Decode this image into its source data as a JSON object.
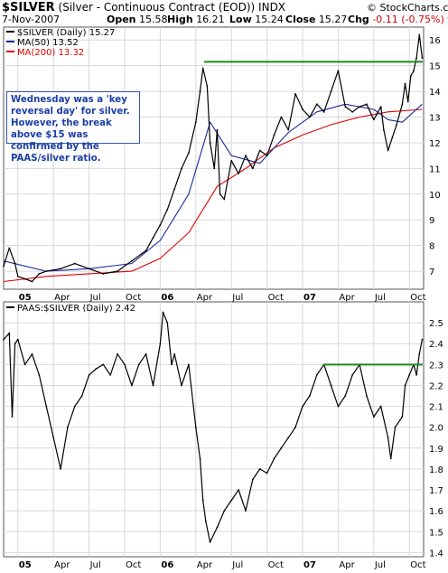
{
  "header": {
    "symbol": "$SILVER",
    "name": "(Silver - Continuous Contract (EOD))",
    "exchange": "INDX",
    "source": "© StockCharts.com",
    "date": "7-Nov-2007",
    "open_label": "Open",
    "open": "15.58",
    "high_label": "High",
    "high": "16.21",
    "low_label": "Low",
    "low": "15.24",
    "close_label": "Close",
    "close": "15.27",
    "chg_label": "Chg",
    "chg": "-0.11 (-0.75%)"
  },
  "colors": {
    "price": "#000000",
    "ma50": "#1c2c9c",
    "ma200": "#e00000",
    "resistance": "#1a8a1a",
    "grid": "#d8d8d8"
  },
  "annotation": "Wednesday was a 'key reversal day' for silver. However, the break above $15 was confirmed by the PAAS/silver ratio.",
  "chart_data": [
    {
      "type": "line",
      "panel": "top",
      "legend": [
        "$SILVER (Daily) 15.27",
        "MA(50) 13.52",
        "MA(200) 13.32"
      ],
      "ylim": [
        6.3,
        16.5
      ],
      "y_ticks": [
        7,
        8,
        9,
        10,
        11,
        12,
        13,
        14,
        15,
        16
      ],
      "x_tick_labels": [
        "05",
        "Apr",
        "Jul",
        "Oct",
        "06",
        "Apr",
        "Jul",
        "Oct",
        "07",
        "Apr",
        "Jul",
        "Oct"
      ],
      "x_ticks_t": [
        0.0,
        0.25,
        0.5,
        0.75,
        1.0,
        1.25,
        1.5,
        1.75,
        2.0,
        2.25,
        2.5,
        2.75
      ],
      "xlim_t": [
        -0.1,
        2.85
      ],
      "resistance_level": 15.15,
      "series": [
        {
          "name": "$SILVER (Daily)",
          "x_t": [
            -0.1,
            -0.06,
            -0.02,
            0.0,
            0.05,
            0.1,
            0.15,
            0.2,
            0.3,
            0.4,
            0.5,
            0.6,
            0.7,
            0.8,
            0.9,
            0.95,
            1.0,
            1.05,
            1.1,
            1.15,
            1.2,
            1.25,
            1.28,
            1.3,
            1.33,
            1.35,
            1.38,
            1.4,
            1.42,
            1.45,
            1.5,
            1.55,
            1.6,
            1.65,
            1.7,
            1.75,
            1.8,
            1.85,
            1.9,
            1.95,
            2.0,
            2.05,
            2.1,
            2.15,
            2.2,
            2.25,
            2.3,
            2.35,
            2.4,
            2.45,
            2.5,
            2.52,
            2.55,
            2.57,
            2.6,
            2.63,
            2.66,
            2.7,
            2.72,
            2.74,
            2.76,
            2.78,
            2.8,
            2.82,
            2.84
          ],
          "values": [
            7.2,
            7.9,
            7.3,
            6.8,
            6.7,
            6.6,
            6.9,
            7.0,
            7.1,
            7.3,
            7.1,
            6.9,
            7.0,
            7.4,
            7.8,
            8.3,
            8.8,
            9.4,
            10.2,
            11.0,
            11.6,
            12.8,
            14.0,
            14.9,
            14.2,
            12.0,
            11.0,
            12.5,
            10.0,
            9.8,
            11.3,
            10.8,
            11.5,
            11.0,
            11.7,
            11.5,
            12.3,
            13.0,
            12.5,
            13.9,
            13.3,
            13.0,
            13.5,
            13.2,
            14.0,
            14.8,
            13.4,
            13.2,
            13.4,
            13.5,
            12.9,
            13.1,
            13.4,
            12.5,
            11.7,
            12.2,
            12.7,
            13.5,
            14.3,
            13.6,
            14.6,
            14.8,
            15.3,
            16.2,
            15.3
          ]
        },
        {
          "name": "MA(50)",
          "x_t": [
            -0.1,
            0.2,
            0.5,
            0.8,
            1.0,
            1.2,
            1.35,
            1.5,
            1.7,
            1.9,
            2.1,
            2.3,
            2.5,
            2.6,
            2.7,
            2.84
          ],
          "values": [
            7.4,
            7.0,
            7.1,
            7.3,
            8.2,
            10.0,
            12.8,
            11.5,
            11.2,
            12.4,
            13.2,
            13.5,
            13.3,
            12.9,
            12.8,
            13.5
          ]
        },
        {
          "name": "MA(200)",
          "x_t": [
            -0.1,
            0.2,
            0.5,
            0.8,
            1.0,
            1.2,
            1.4,
            1.6,
            1.8,
            2.0,
            2.2,
            2.4,
            2.6,
            2.84
          ],
          "values": [
            6.6,
            6.8,
            6.9,
            7.0,
            7.5,
            8.5,
            10.3,
            11.0,
            11.8,
            12.3,
            12.7,
            13.0,
            13.2,
            13.3
          ]
        }
      ]
    },
    {
      "type": "line",
      "panel": "bottom",
      "legend": [
        "PAAS:$SILVER (Daily) 2.42"
      ],
      "ylim": [
        1.38,
        2.6
      ],
      "y_ticks": [
        1.4,
        1.5,
        1.6,
        1.7,
        1.8,
        1.9,
        2.0,
        2.1,
        2.2,
        2.3,
        2.4,
        2.5
      ],
      "x_tick_labels": [
        "05",
        "Apr",
        "Jul",
        "Oct",
        "06",
        "Apr",
        "Jul",
        "Oct",
        "07",
        "Apr",
        "Jul",
        "Oct"
      ],
      "x_ticks_t": [
        0.0,
        0.25,
        0.5,
        0.75,
        1.0,
        1.25,
        1.5,
        1.75,
        2.0,
        2.25,
        2.5,
        2.75
      ],
      "xlim_t": [
        -0.1,
        2.85
      ],
      "resistance_level": 2.3,
      "series": [
        {
          "name": "PAAS:$SILVER (Daily)",
          "x_t": [
            -0.1,
            -0.06,
            -0.04,
            -0.02,
            0.0,
            0.05,
            0.1,
            0.15,
            0.2,
            0.25,
            0.3,
            0.35,
            0.4,
            0.45,
            0.5,
            0.55,
            0.6,
            0.65,
            0.7,
            0.75,
            0.8,
            0.85,
            0.9,
            0.95,
            1.0,
            1.02,
            1.05,
            1.08,
            1.1,
            1.15,
            1.2,
            1.25,
            1.28,
            1.3,
            1.32,
            1.35,
            1.4,
            1.45,
            1.5,
            1.55,
            1.6,
            1.65,
            1.7,
            1.75,
            1.8,
            1.85,
            1.9,
            1.95,
            2.0,
            2.05,
            2.1,
            2.15,
            2.2,
            2.25,
            2.3,
            2.35,
            2.4,
            2.45,
            2.5,
            2.55,
            2.6,
            2.62,
            2.65,
            2.7,
            2.72,
            2.75,
            2.78,
            2.8,
            2.82,
            2.84
          ],
          "values": [
            2.42,
            2.45,
            2.05,
            2.4,
            2.42,
            2.3,
            2.35,
            2.25,
            2.1,
            1.95,
            1.8,
            2.0,
            2.1,
            2.15,
            2.25,
            2.28,
            2.3,
            2.25,
            2.35,
            2.3,
            2.2,
            2.3,
            2.35,
            2.2,
            2.4,
            2.55,
            2.5,
            2.3,
            2.35,
            2.2,
            2.3,
            2.0,
            1.85,
            1.65,
            1.55,
            1.45,
            1.52,
            1.6,
            1.65,
            1.7,
            1.6,
            1.75,
            1.8,
            1.78,
            1.85,
            1.9,
            1.95,
            2.0,
            2.1,
            2.15,
            2.25,
            2.3,
            2.2,
            2.1,
            2.15,
            2.25,
            2.3,
            2.15,
            2.05,
            2.1,
            1.95,
            1.85,
            2.0,
            2.05,
            2.2,
            2.25,
            2.3,
            2.25,
            2.35,
            2.42
          ]
        }
      ]
    }
  ]
}
